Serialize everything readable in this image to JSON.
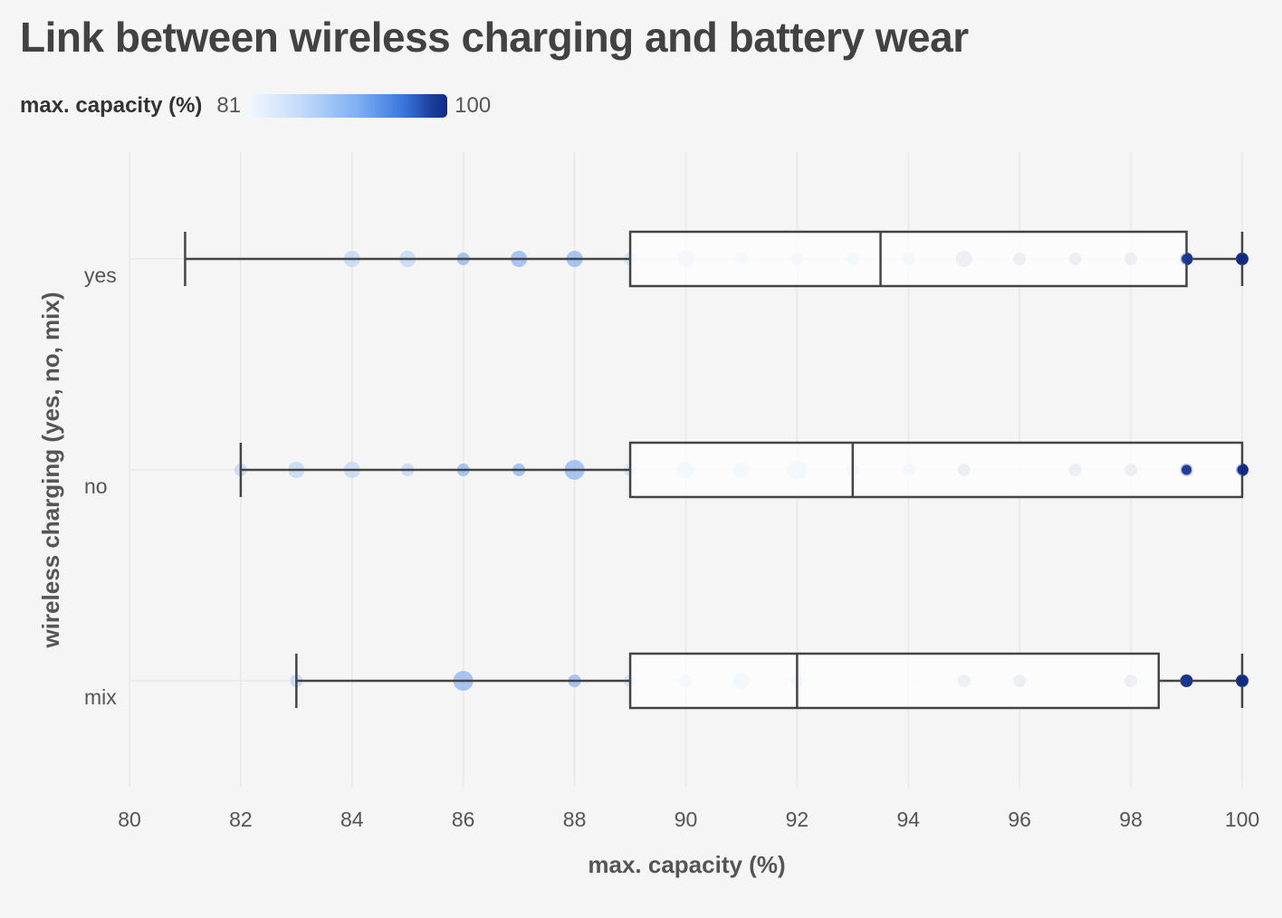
{
  "chart_data": {
    "type": "boxplot",
    "title": "Link between wireless charging and battery wear",
    "xlabel": "max. capacity (%)",
    "ylabel": "wireless charging (yes, no, mix)",
    "xlim": [
      80,
      100
    ],
    "xticks": [
      "80",
      "82",
      "84",
      "86",
      "88",
      "90",
      "92",
      "94",
      "96",
      "98",
      "100"
    ],
    "legend": {
      "title": "max. capacity (%)",
      "min_label": "81",
      "max_label": "100",
      "min": 81,
      "max": 100,
      "placement": "top-left",
      "colors": [
        "#f3f7ff",
        "#c6dcfb",
        "#7fb0f2",
        "#3a76dc",
        "#1d3f9c",
        "#0f2a88"
      ]
    },
    "categories": [
      "yes",
      "no",
      "mix"
    ],
    "boxes": [
      {
        "category": "yes",
        "whisker_low": 81,
        "q1": 89,
        "median": 93.5,
        "q3": 99,
        "whisker_high": 100
      },
      {
        "category": "no",
        "whisker_low": 82,
        "q1": 89,
        "median": 93,
        "q3": 100,
        "whisker_high": 100
      },
      {
        "category": "mix",
        "whisker_low": 83,
        "q1": 89,
        "median": 92,
        "q3": 98.5,
        "whisker_high": 100
      }
    ],
    "points": [
      {
        "category": "yes",
        "value": 84,
        "count": 2
      },
      {
        "category": "yes",
        "value": 85,
        "count": 2
      },
      {
        "category": "yes",
        "value": 86,
        "count": 1
      },
      {
        "category": "yes",
        "value": 87,
        "count": 2
      },
      {
        "category": "yes",
        "value": 88,
        "count": 2
      },
      {
        "category": "yes",
        "value": 89,
        "count": 1
      },
      {
        "category": "yes",
        "value": 90,
        "count": 2
      },
      {
        "category": "yes",
        "value": 91,
        "count": 1
      },
      {
        "category": "yes",
        "value": 92,
        "count": 1
      },
      {
        "category": "yes",
        "value": 93,
        "count": 1
      },
      {
        "category": "yes",
        "value": 94,
        "count": 1
      },
      {
        "category": "yes",
        "value": 95,
        "count": 2
      },
      {
        "category": "yes",
        "value": 96,
        "count": 1
      },
      {
        "category": "yes",
        "value": 97,
        "count": 1
      },
      {
        "category": "yes",
        "value": 98,
        "count": 1
      },
      {
        "category": "yes",
        "value": 99,
        "count": 1
      },
      {
        "category": "yes",
        "value": 100,
        "count": 1
      },
      {
        "category": "no",
        "value": 82,
        "count": 1
      },
      {
        "category": "no",
        "value": 83,
        "count": 2
      },
      {
        "category": "no",
        "value": 84,
        "count": 2
      },
      {
        "category": "no",
        "value": 85,
        "count": 1
      },
      {
        "category": "no",
        "value": 86,
        "count": 1
      },
      {
        "category": "no",
        "value": 87,
        "count": 1
      },
      {
        "category": "no",
        "value": 88,
        "count": 3
      },
      {
        "category": "no",
        "value": 89,
        "count": 1
      },
      {
        "category": "no",
        "value": 90,
        "count": 2
      },
      {
        "category": "no",
        "value": 91,
        "count": 2
      },
      {
        "category": "no",
        "value": 92,
        "count": 3
      },
      {
        "category": "no",
        "value": 93,
        "count": 1
      },
      {
        "category": "no",
        "value": 94,
        "count": 1
      },
      {
        "category": "no",
        "value": 95,
        "count": 1
      },
      {
        "category": "no",
        "value": 97,
        "count": 1
      },
      {
        "category": "no",
        "value": 98,
        "count": 1
      },
      {
        "category": "no",
        "value": 99,
        "count": 1
      },
      {
        "category": "no",
        "value": 100,
        "count": 1
      },
      {
        "category": "mix",
        "value": 83,
        "count": 1
      },
      {
        "category": "mix",
        "value": 86,
        "count": 3
      },
      {
        "category": "mix",
        "value": 88,
        "count": 1
      },
      {
        "category": "mix",
        "value": 89,
        "count": 1
      },
      {
        "category": "mix",
        "value": 90,
        "count": 1
      },
      {
        "category": "mix",
        "value": 91,
        "count": 2
      },
      {
        "category": "mix",
        "value": 92,
        "count": 1
      },
      {
        "category": "mix",
        "value": 95,
        "count": 1
      },
      {
        "category": "mix",
        "value": 96,
        "count": 1
      },
      {
        "category": "mix",
        "value": 98,
        "count": 1
      },
      {
        "category": "mix",
        "value": 99,
        "count": 1
      },
      {
        "category": "mix",
        "value": 100,
        "count": 1
      }
    ],
    "grid": true
  }
}
